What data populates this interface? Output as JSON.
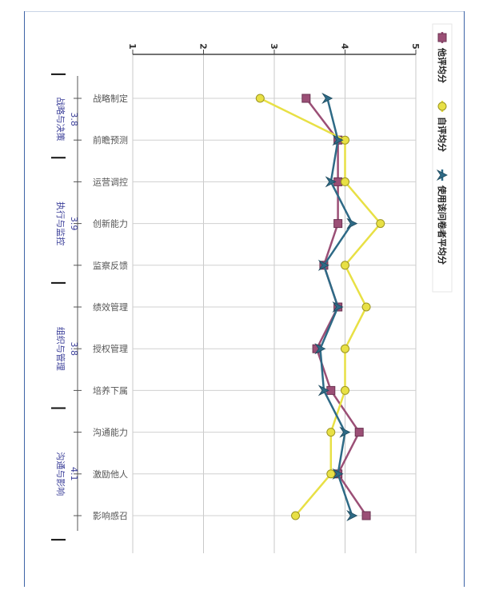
{
  "chart_data": {
    "type": "line",
    "orientation": "rotated-90-clockwise",
    "value_axis": {
      "ticks": [
        "1",
        "2",
        "3",
        "4",
        "5"
      ],
      "range": [
        1,
        5
      ]
    },
    "categories": [
      "战略制定",
      "前瞻预测",
      "运营调控",
      "创新能力",
      "监察反馈",
      "绩效管理",
      "授权管理",
      "培养下属",
      "沟通能力",
      "激励他人",
      "影响感召"
    ],
    "groups": [
      {
        "name": "战略与决策",
        "score": "3.8",
        "from": 0,
        "to": 1
      },
      {
        "name": "执行与监控",
        "score": "3.9",
        "from": 2,
        "to": 4
      },
      {
        "name": "组织与管理",
        "score": "3.8",
        "from": 5,
        "to": 7
      },
      {
        "name": "沟通与影响",
        "score": "4.1",
        "from": 8,
        "to": 10
      }
    ],
    "series": [
      {
        "name": "他评均分",
        "color": "#9b4f76",
        "marker": "square",
        "values": [
          3.45,
          3.9,
          3.9,
          3.9,
          3.7,
          3.9,
          3.6,
          3.8,
          4.2,
          3.9,
          4.3
        ]
      },
      {
        "name": "自评均分",
        "color": "#e8e045",
        "marker": "circle",
        "values": [
          2.8,
          4.0,
          4.0,
          4.5,
          4.0,
          4.3,
          4.0,
          4.0,
          3.8,
          3.8,
          3.3
        ]
      },
      {
        "name": "使用该问卷者平均分",
        "color": "#2e6a86",
        "marker": "arrow",
        "values": [
          3.75,
          3.9,
          3.8,
          4.1,
          3.7,
          3.9,
          3.65,
          3.7,
          4.0,
          3.9,
          4.1
        ]
      }
    ],
    "legend_position": "right",
    "grid": true
  }
}
